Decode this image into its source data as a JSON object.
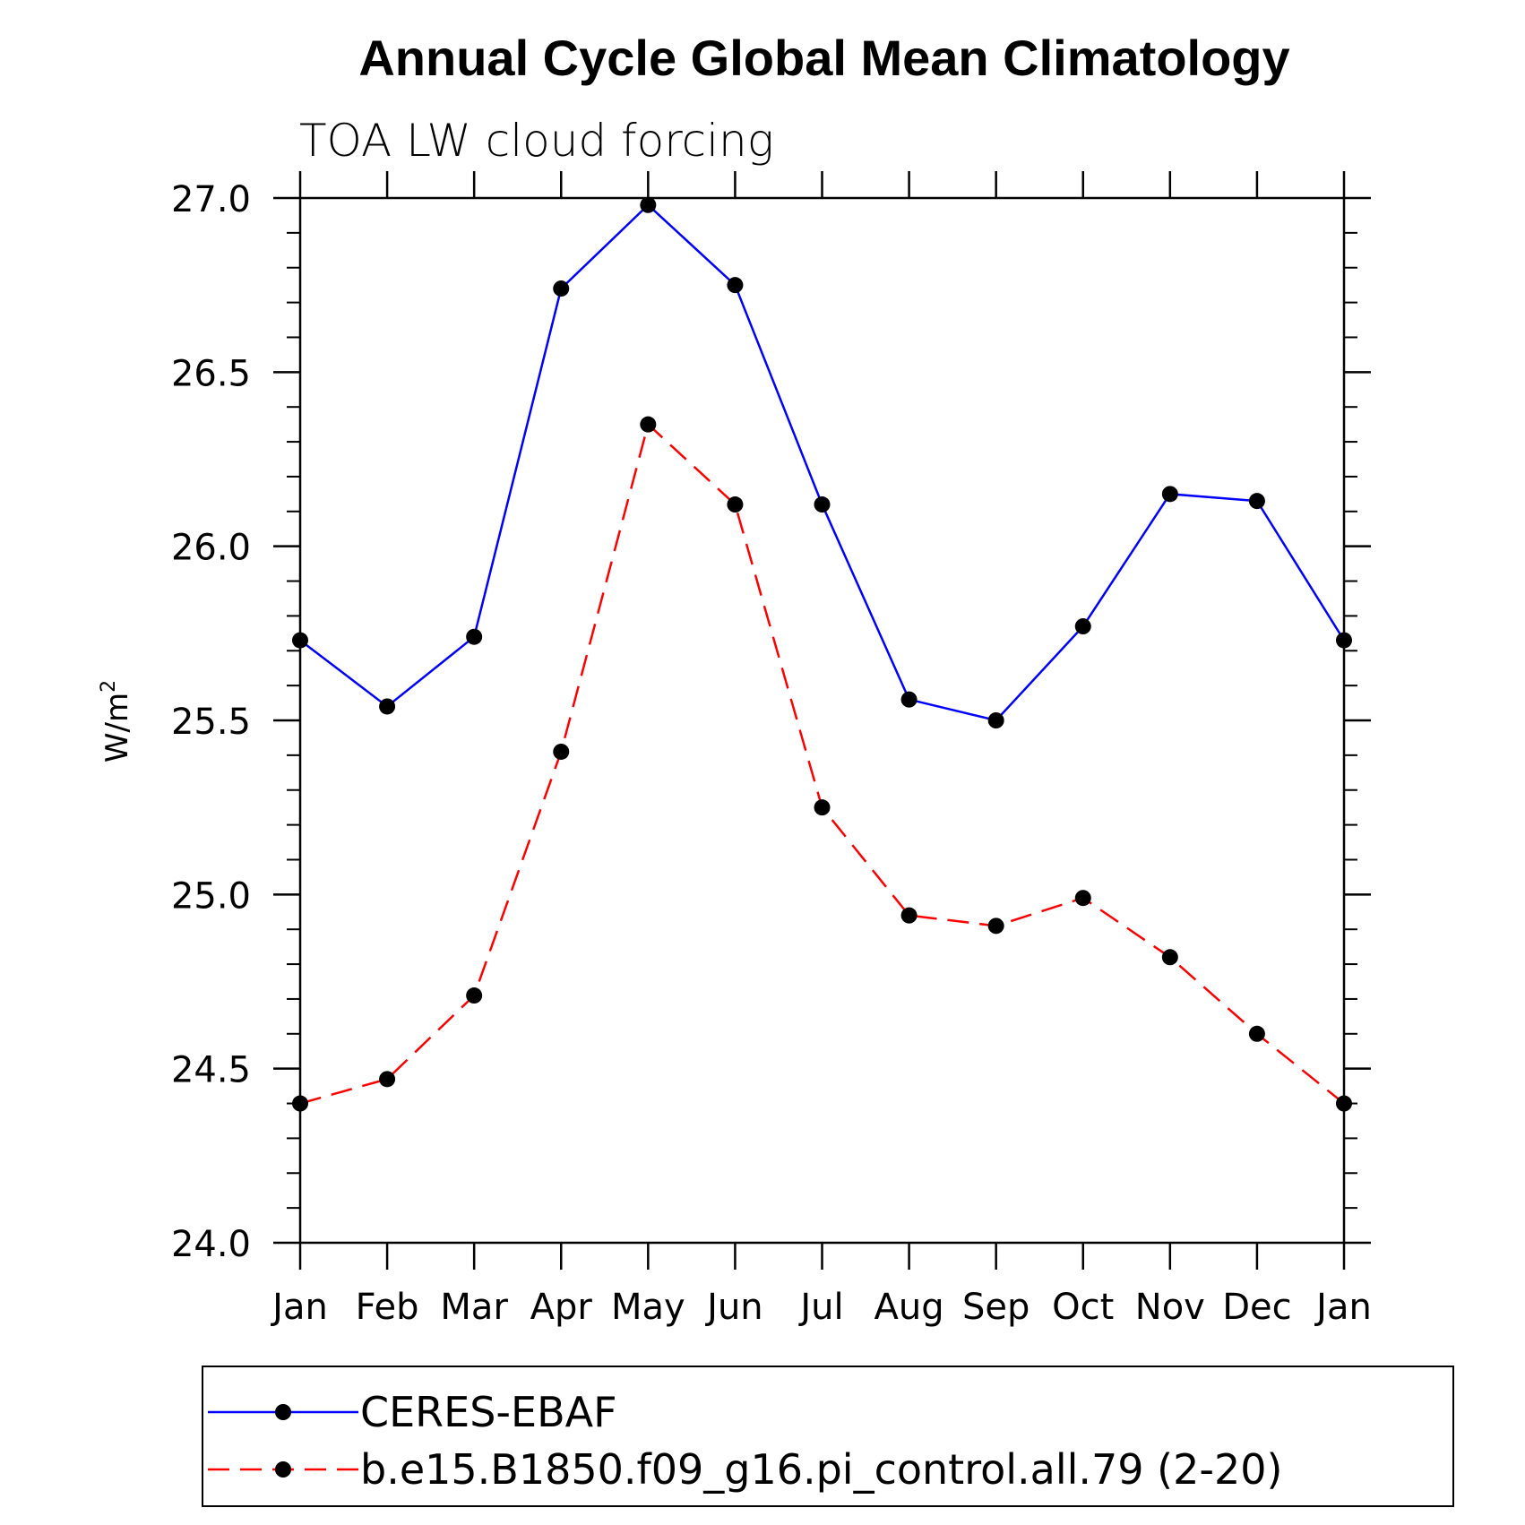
{
  "chart_data": {
    "type": "line",
    "title": "Annual Cycle Global Mean Climatology",
    "subtitle": "TOA LW cloud forcing",
    "xlabel": "",
    "ylabel": "W/m",
    "ylabel_superscript": "2",
    "categories": [
      "Jan",
      "Feb",
      "Mar",
      "Apr",
      "May",
      "Jun",
      "Jul",
      "Aug",
      "Sep",
      "Oct",
      "Nov",
      "Dec",
      "Jan"
    ],
    "ylim": [
      24.0,
      27.0
    ],
    "yticks": [
      "24.0",
      "24.5",
      "25.0",
      "25.5",
      "26.0",
      "26.5",
      "27.0"
    ],
    "yticks_values": [
      24.0,
      24.5,
      25.0,
      25.5,
      26.0,
      26.5,
      27.0
    ],
    "series": [
      {
        "name": "CERES-EBAF",
        "color": "#0000ff",
        "dash": "solid",
        "values": [
          25.73,
          25.54,
          25.74,
          26.74,
          26.98,
          26.75,
          26.12,
          25.56,
          25.5,
          25.77,
          26.15,
          26.13,
          25.73
        ]
      },
      {
        "name": "b.e15.B1850.f09_g16.pi_control.all.79 (2-20)",
        "color": "#ff0000",
        "dash": "dashed",
        "values": [
          24.4,
          24.47,
          24.71,
          25.41,
          26.35,
          26.12,
          25.25,
          24.94,
          24.91,
          24.99,
          24.82,
          24.6,
          24.4
        ]
      }
    ],
    "legend": "bottom",
    "grid": false
  }
}
